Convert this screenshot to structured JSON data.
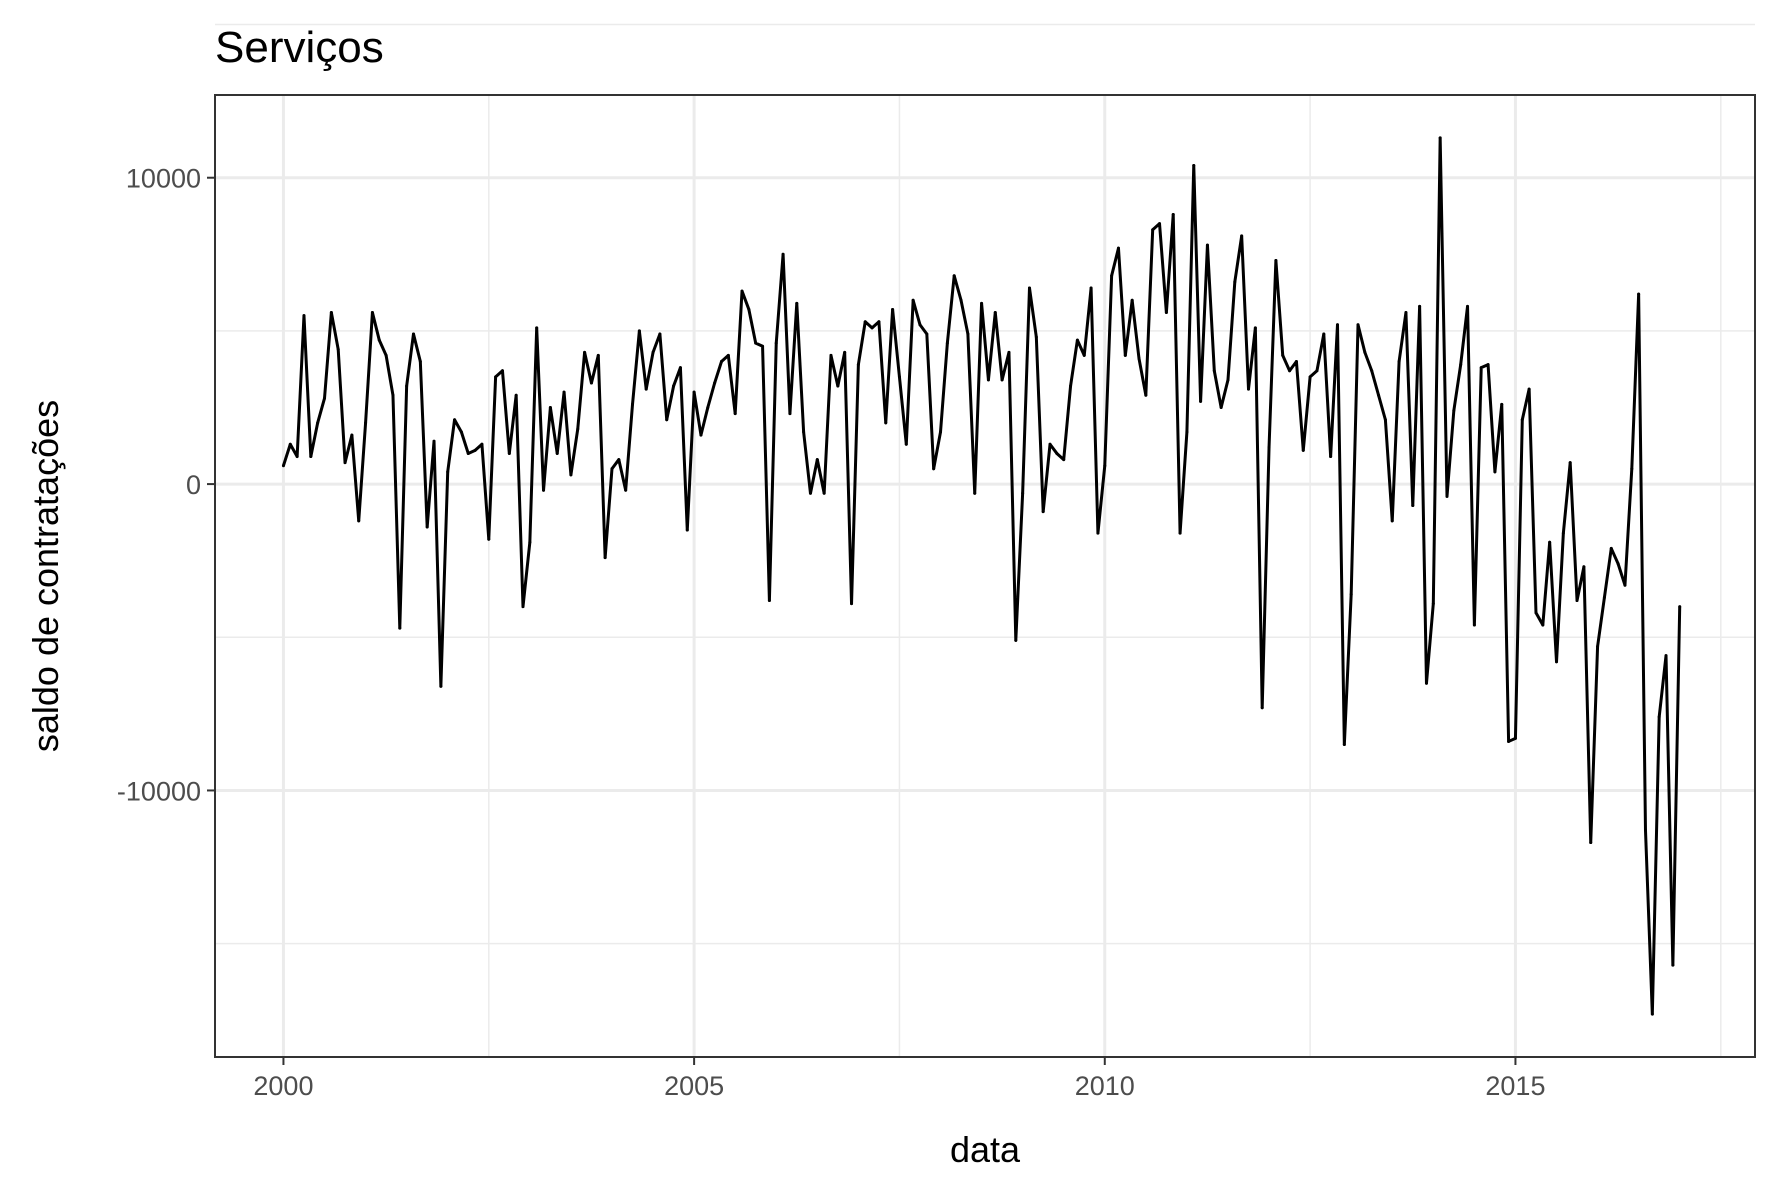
{
  "chart_data": {
    "type": "line",
    "title": "Serviços",
    "xlabel": "data",
    "ylabel": "saldo de contratações",
    "x_ticks": [
      "2000",
      "2005",
      "2010",
      "2015"
    ],
    "y_ticks": [
      "10000",
      "0",
      "-10000"
    ],
    "xlim": [
      "1999-03",
      "2017-12"
    ],
    "ylim": [
      -18700,
      12700
    ],
    "grid": true,
    "legend": "none",
    "series": [
      {
        "line_color": "#000000",
        "start": "2000-01",
        "frequency": "monthly",
        "values": [
          600,
          1300,
          900,
          5500,
          900,
          2000,
          2800,
          5600,
          4400,
          700,
          1600,
          -1200,
          2000,
          5600,
          4700,
          4200,
          2900,
          -4700,
          3200,
          4900,
          4000,
          -1400,
          1400,
          -6600,
          400,
          2100,
          1700,
          1000,
          1100,
          1300,
          -1800,
          3500,
          3700,
          1000,
          2900,
          -4000,
          -1900,
          5100,
          -200,
          2500,
          1000,
          3000,
          300,
          1800,
          4300,
          3300,
          4200,
          -2400,
          500,
          800,
          -200,
          2600,
          5000,
          3100,
          4300,
          4900,
          2100,
          3200,
          3800,
          -1500,
          3000,
          1600,
          2500,
          3300,
          4000,
          4200,
          2300,
          6300,
          5700,
          4600,
          4500,
          -3800,
          4600,
          7500,
          2300,
          5900,
          1700,
          -300,
          800,
          -300,
          4200,
          3200,
          4300,
          -3900,
          3900,
          5300,
          5100,
          5300,
          2000,
          5700,
          3500,
          1300,
          6000,
          5200,
          4900,
          500,
          1700,
          4600,
          6800,
          6000,
          4900,
          -300,
          5900,
          3400,
          5600,
          3400,
          4300,
          -5100,
          -300,
          6400,
          4800,
          -900,
          1300,
          1000,
          800,
          3200,
          4700,
          4200,
          6400,
          -1600,
          600,
          6800,
          7700,
          4200,
          6000,
          4100,
          2900,
          8300,
          8500,
          5600,
          8800,
          -1600,
          1700,
          10400,
          2700,
          7800,
          3700,
          2500,
          3400,
          6600,
          8100,
          3100,
          5100,
          -7300,
          1200,
          7300,
          4200,
          3700,
          4000,
          1100,
          3500,
          3700,
          4900,
          900,
          5200,
          -8500,
          -3600,
          5200,
          4300,
          3700,
          2900,
          2100,
          -1200,
          4000,
          5600,
          -700,
          5800,
          -6500,
          -3900,
          11300,
          -400,
          2400,
          3900,
          5800,
          -4600,
          3800,
          3900,
          400,
          2600,
          -8400,
          -8300,
          2100,
          3100,
          -4200,
          -4600,
          -1900,
          -5800,
          -1600,
          700,
          -3800,
          -2700,
          -11700,
          -5300,
          -3700,
          -2100,
          -2600,
          -3300,
          500,
          6200,
          -11300,
          -17300,
          -7600,
          -5600,
          -15700,
          -4000
        ]
      }
    ]
  }
}
